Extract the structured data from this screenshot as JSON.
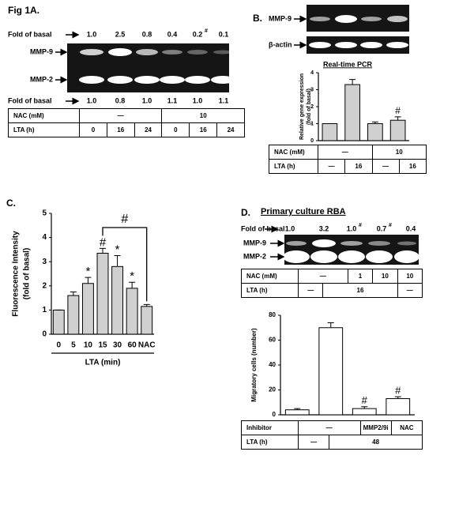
{
  "figure": {
    "label_a": "Fig 1A.",
    "label_b": "B.",
    "label_c": "C.",
    "label_d": "D."
  },
  "panel_a": {
    "fold_label": "Fold of basal",
    "fold_top": [
      {
        "text": "1.0"
      },
      {
        "text": "2.5"
      },
      {
        "text": "0.8"
      },
      {
        "text": "0.4"
      },
      {
        "text": "0.2",
        "sup": "#"
      },
      {
        "text": "0.1"
      }
    ],
    "fold_bottom": [
      {
        "text": "1.0"
      },
      {
        "text": "0.8"
      },
      {
        "text": "1.0"
      },
      {
        "text": "1.1"
      },
      {
        "text": "1.0"
      },
      {
        "text": "1.1"
      }
    ],
    "bands": [
      "MMP-9",
      "MMP-2"
    ],
    "table": {
      "rows": [
        {
          "label": "NAC (mM)",
          "cells": [
            "—",
            "10"
          ]
        },
        {
          "label": "LTA (h)",
          "cells": [
            "0",
            "16",
            "24",
            "0",
            "16",
            "24"
          ]
        }
      ]
    }
  },
  "panel_b": {
    "bands": [
      "MMP-9",
      "β-actin"
    ],
    "table": {
      "rows": [
        {
          "label": "NAC (mM)",
          "cells": [
            "—",
            "10"
          ]
        },
        {
          "label": "LTA (h)",
          "cells": [
            "—",
            "16",
            "—",
            "16"
          ]
        }
      ]
    }
  },
  "panel_d": {
    "title": "Primary culture RBA",
    "fold_label": "Fold of basal",
    "fold_top": [
      {
        "text": "1.0"
      },
      {
        "text": "3.2"
      },
      {
        "text": "1.0",
        "sup": "#"
      },
      {
        "text": "0.7",
        "sup": "#"
      },
      {
        "text": "0.4"
      }
    ],
    "bands": [
      "MMP-9",
      "MMP-2"
    ],
    "table": {
      "rows": [
        {
          "label": "NAC (mM)",
          "cells": [
            "—",
            "1",
            "10",
            "10"
          ]
        },
        {
          "label": "LTA (h)",
          "cells": [
            "—",
            "16",
            "—"
          ]
        }
      ]
    },
    "table2": {
      "rows": [
        {
          "label": "Inhibitor",
          "cells": [
            "—",
            "MMP2/9i",
            "NAC"
          ]
        },
        {
          "label": "LTA (h)",
          "cells": [
            "—",
            "48"
          ]
        }
      ]
    }
  },
  "chart_data": [
    {
      "type": "bar",
      "title": "Real-time PCR",
      "ylabel": [
        "Relative gene expression",
        "(fold of basal)"
      ],
      "values": [
        1,
        3.3,
        1.0,
        1.2
      ],
      "errors": [
        0,
        0.3,
        0.1,
        0.2
      ],
      "markers": [
        null,
        null,
        null,
        "#"
      ],
      "color": "#d0d0d0",
      "ylim": [
        0,
        4
      ],
      "yticks": [
        0,
        1,
        2,
        3,
        4
      ]
    },
    {
      "type": "bar",
      "ylabel": [
        "Fluorescence Intensity",
        "(fold of basal)"
      ],
      "xlabel": "LTA (min)",
      "categories": [
        "0",
        "5",
        "10",
        "15",
        "30",
        "60",
        "NAC"
      ],
      "values": [
        1,
        1.6,
        2.1,
        3.35,
        2.8,
        1.9,
        1.15
      ],
      "errors": [
        0,
        0.15,
        0.25,
        0.2,
        0.45,
        0.25,
        0.08
      ],
      "markers": [
        null,
        null,
        "*",
        "#",
        "*",
        "*",
        null
      ],
      "bracket": {
        "from": "15",
        "to": "NAC",
        "label": "#"
      },
      "color": "#d0d0d0",
      "ylim": [
        0,
        5
      ],
      "yticks": [
        0,
        1,
        2,
        3,
        4,
        5
      ]
    },
    {
      "type": "bar",
      "ylabel": [
        "Migratory cells (number)"
      ],
      "values": [
        4,
        70,
        5,
        13
      ],
      "errors": [
        1,
        4,
        1.5,
        1.5
      ],
      "markers": [
        null,
        null,
        "#",
        "#"
      ],
      "color": "#ffffff",
      "ylim": [
        0,
        80
      ],
      "yticks": [
        0,
        20,
        40,
        60,
        80
      ]
    }
  ]
}
